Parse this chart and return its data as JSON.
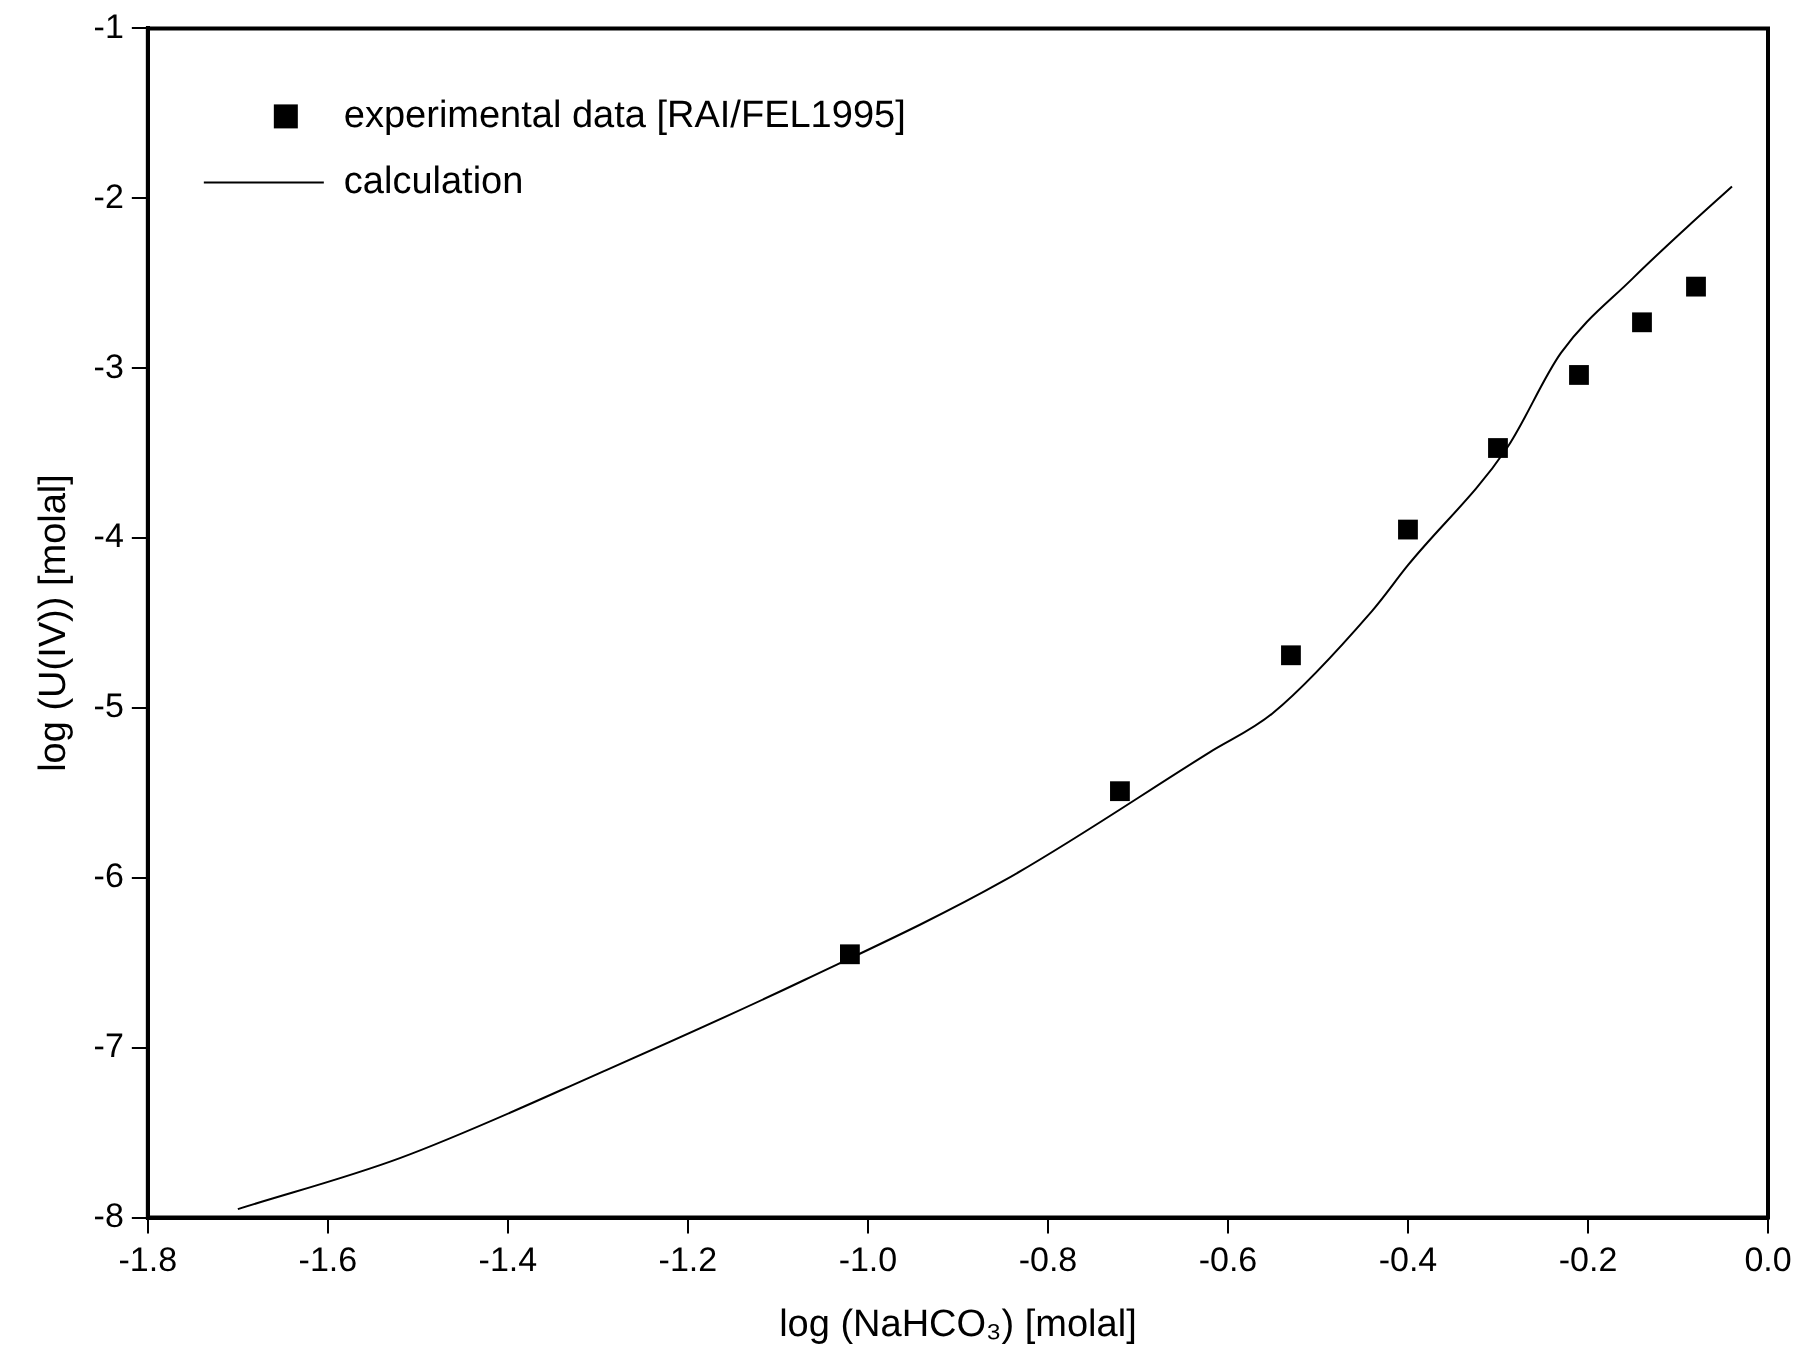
{
  "chart_data": {
    "type": "scatter",
    "xlabel": "log (NaHCO₃) [molal]",
    "ylabel": "log (U(IV)) [molal]",
    "xlim": [
      -1.8,
      0.0
    ],
    "ylim": [
      -8,
      -1
    ],
    "xticks": [
      -1.8,
      -1.6,
      -1.4,
      -1.2,
      {
        "value": -1.0,
        "label": "-1.0"
      },
      -0.8,
      -0.6,
      -0.4,
      -0.2,
      {
        "value": 0.0,
        "label": "0.0"
      }
    ],
    "yticks": [
      -8,
      -7,
      -6,
      -5,
      -4,
      -3,
      -2,
      -1
    ],
    "legend": "top left",
    "series": [
      {
        "name": "experimental data [RAI/FEL1995]",
        "marker": "square",
        "color": "#000000",
        "x": [
          -1.02,
          -0.72,
          -0.53,
          -0.4,
          -0.3,
          -0.21,
          -0.14,
          -0.08
        ],
        "values": [
          -6.45,
          -5.49,
          -4.69,
          -3.95,
          -3.47,
          -3.04,
          -2.73,
          -2.52
        ]
      },
      {
        "name": "calculation",
        "type": "line",
        "marker": "none",
        "line_style": "solid",
        "color": "#000000",
        "x": [
          -1.7,
          -1.52,
          -1.29,
          -1.07,
          -0.85,
          -0.62,
          -0.55,
          -0.44,
          -0.4,
          -0.29,
          -0.23,
          -0.15,
          -0.09,
          -0.04
        ],
        "values": [
          -7.95,
          -7.65,
          -7.13,
          -6.6,
          -6.02,
          -5.26,
          -5.03,
          -4.43,
          -4.16,
          -3.47,
          -2.91,
          -2.47,
          -2.17,
          -1.93
        ]
      }
    ]
  }
}
